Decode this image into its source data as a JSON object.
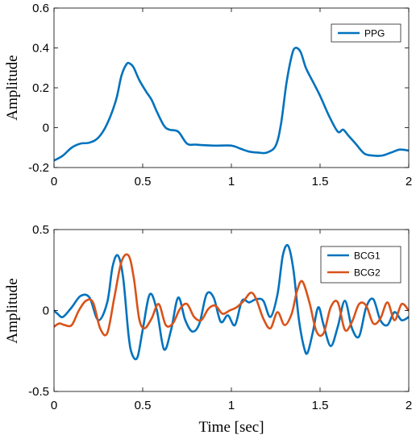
{
  "colors": {
    "blue": "#0072BD",
    "orange": "#D95319",
    "axis": "#000000"
  },
  "chart_data": [
    {
      "type": "line",
      "title": "",
      "xlabel": "",
      "ylabel": "Amplitude",
      "xlim": [
        0,
        2
      ],
      "ylim": [
        -0.2,
        0.6
      ],
      "xticks": [
        0,
        0.5,
        1,
        1.5,
        2
      ],
      "xtick_labels": [
        "0",
        "0.5",
        "1",
        "1.5",
        "2"
      ],
      "yticks": [
        -0.2,
        0,
        0.2,
        0.4,
        0.6
      ],
      "ytick_labels": [
        "-0.2",
        "0",
        "0.2",
        "0.4",
        "0.6"
      ],
      "grid": false,
      "legend": "top-right",
      "series": [
        {
          "name": "PPG",
          "color": "#0072BD",
          "x": [
            0,
            0.05,
            0.1,
            0.15,
            0.2,
            0.25,
            0.3,
            0.35,
            0.38,
            0.41,
            0.43,
            0.45,
            0.48,
            0.52,
            0.55,
            0.58,
            0.62,
            0.65,
            0.7,
            0.75,
            0.8,
            0.9,
            1.0,
            1.05,
            1.1,
            1.15,
            1.2,
            1.25,
            1.28,
            1.31,
            1.34,
            1.36,
            1.39,
            1.42,
            1.46,
            1.5,
            1.55,
            1.6,
            1.63,
            1.66,
            1.7,
            1.75,
            1.8,
            1.85,
            1.9,
            1.95,
            2.0
          ],
          "y": [
            -0.165,
            -0.14,
            -0.1,
            -0.08,
            -0.075,
            -0.05,
            0.02,
            0.14,
            0.26,
            0.32,
            0.32,
            0.3,
            0.24,
            0.18,
            0.14,
            0.08,
            0.01,
            -0.01,
            -0.02,
            -0.08,
            -0.085,
            -0.09,
            -0.09,
            -0.105,
            -0.12,
            -0.125,
            -0.125,
            -0.09,
            0.02,
            0.22,
            0.36,
            0.4,
            0.38,
            0.3,
            0.23,
            0.16,
            0.06,
            -0.02,
            -0.01,
            -0.04,
            -0.08,
            -0.13,
            -0.14,
            -0.14,
            -0.125,
            -0.11,
            -0.115
          ]
        }
      ]
    },
    {
      "type": "line",
      "title": "",
      "xlabel": "Time [sec]",
      "ylabel": "Amplitude",
      "xlim": [
        0,
        2
      ],
      "ylim": [
        -0.5,
        0.5
      ],
      "xticks": [
        0,
        0.5,
        1,
        1.5,
        2
      ],
      "xtick_labels": [
        "0",
        "0.5",
        "1",
        "1.5",
        "2"
      ],
      "yticks": [
        -0.5,
        0,
        0.5
      ],
      "ytick_labels": [
        "-0.5",
        "0",
        "0.5"
      ],
      "grid": false,
      "legend": "top-right",
      "series": [
        {
          "name": "BCG1",
          "color": "#0072BD",
          "x": [
            0,
            0.02,
            0.05,
            0.1,
            0.15,
            0.2,
            0.25,
            0.3,
            0.33,
            0.36,
            0.39,
            0.42,
            0.44,
            0.47,
            0.5,
            0.54,
            0.58,
            0.62,
            0.66,
            0.7,
            0.74,
            0.78,
            0.82,
            0.86,
            0.9,
            0.94,
            0.98,
            1.02,
            1.06,
            1.1,
            1.14,
            1.18,
            1.22,
            1.26,
            1.29,
            1.32,
            1.35,
            1.38,
            1.41,
            1.43,
            1.46,
            1.49,
            1.52,
            1.56,
            1.6,
            1.64,
            1.68,
            1.72,
            1.76,
            1.8,
            1.84,
            1.88,
            1.92,
            1.96,
            2.0
          ],
          "y": [
            0.0,
            -0.02,
            -0.04,
            0.02,
            0.09,
            0.08,
            -0.06,
            0.05,
            0.27,
            0.34,
            0.2,
            -0.15,
            -0.27,
            -0.29,
            -0.12,
            0.1,
            0.0,
            -0.24,
            -0.12,
            0.08,
            -0.06,
            -0.13,
            -0.08,
            0.1,
            0.08,
            -0.07,
            -0.03,
            -0.09,
            0.06,
            0.05,
            0.07,
            0.06,
            -0.04,
            0.1,
            0.34,
            0.4,
            0.25,
            -0.05,
            -0.23,
            -0.26,
            -0.13,
            0.02,
            -0.09,
            -0.22,
            -0.1,
            0.06,
            -0.11,
            -0.16,
            0.02,
            0.07,
            -0.06,
            -0.09,
            -0.01,
            -0.06,
            -0.04
          ]
        },
        {
          "name": "BCG2",
          "color": "#D95319",
          "x": [
            0,
            0.03,
            0.06,
            0.1,
            0.14,
            0.18,
            0.22,
            0.26,
            0.3,
            0.34,
            0.38,
            0.42,
            0.45,
            0.48,
            0.51,
            0.55,
            0.59,
            0.63,
            0.67,
            0.71,
            0.75,
            0.79,
            0.83,
            0.87,
            0.91,
            0.95,
            0.99,
            1.03,
            1.07,
            1.11,
            1.14,
            1.18,
            1.22,
            1.26,
            1.3,
            1.34,
            1.37,
            1.4,
            1.44,
            1.48,
            1.52,
            1.56,
            1.6,
            1.64,
            1.68,
            1.72,
            1.76,
            1.8,
            1.84,
            1.88,
            1.92,
            1.96,
            2.0
          ],
          "y": [
            -0.1,
            -0.08,
            -0.09,
            -0.09,
            0.0,
            0.06,
            0.05,
            -0.11,
            -0.14,
            0.08,
            0.3,
            0.34,
            0.2,
            -0.05,
            -0.11,
            -0.05,
            0.04,
            -0.09,
            -0.08,
            0.01,
            0.04,
            -0.04,
            -0.06,
            0.01,
            0.03,
            -0.02,
            0.0,
            0.02,
            0.06,
            0.11,
            0.07,
            -0.05,
            -0.11,
            -0.01,
            -0.09,
            -0.02,
            0.12,
            0.18,
            0.05,
            -0.13,
            -0.14,
            0.02,
            0.05,
            -0.12,
            -0.07,
            0.04,
            0.03,
            -0.08,
            -0.05,
            0.05,
            -0.06,
            0.04,
            0.0
          ]
        }
      ]
    }
  ]
}
